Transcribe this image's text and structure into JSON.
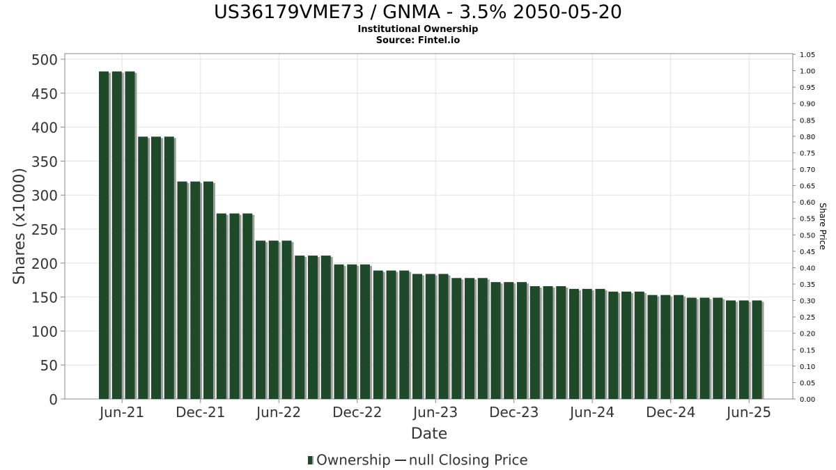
{
  "chart_data": {
    "type": "bar",
    "title": "US36179VME73 / GNMA - 3.5% 2050-05-20",
    "subtitle_lines": [
      "Institutional Ownership",
      "Source: Fintel.io"
    ],
    "xlabel": "Date",
    "ylabel": "Shares (x1000)",
    "y2label": "Share Price",
    "ylim": [
      0,
      510
    ],
    "y2lim": [
      0,
      1.05
    ],
    "yticks": [
      0,
      50,
      100,
      150,
      200,
      250,
      300,
      350,
      400,
      450,
      500
    ],
    "y2ticks": [
      "0.00",
      "0.05",
      "0.10",
      "0.15",
      "0.20",
      "0.25",
      "0.30",
      "0.35",
      "0.40",
      "0.45",
      "0.50",
      "0.55",
      "0.60",
      "0.65",
      "0.70",
      "0.75",
      "0.80",
      "0.85",
      "0.90",
      "0.95",
      "1.00",
      "1.05"
    ],
    "xticks": [
      {
        "label": "Jun-21",
        "index": 1.4
      },
      {
        "label": "Dec-21",
        "index": 7.4
      },
      {
        "label": "Jun-22",
        "index": 13.4
      },
      {
        "label": "Dec-22",
        "index": 19.4
      },
      {
        "label": "Jun-23",
        "index": 25.4
      },
      {
        "label": "Dec-23",
        "index": 31.4
      },
      {
        "label": "Jun-24",
        "index": 37.4
      },
      {
        "label": "Dec-24",
        "index": 43.4
      },
      {
        "label": "Jun-25",
        "index": 49.4
      }
    ],
    "grid": true,
    "legend_position": "bottom",
    "series": [
      {
        "name": "Ownership",
        "color": "#1f4a2a",
        "values": [
          482,
          482,
          482,
          386,
          386,
          386,
          320,
          320,
          320,
          273,
          273,
          273,
          233,
          233,
          233,
          211,
          211,
          211,
          198,
          198,
          198,
          189,
          189,
          189,
          184,
          184,
          184,
          178,
          178,
          178,
          172,
          172,
          172,
          166,
          166,
          166,
          162,
          162,
          162,
          158,
          158,
          158,
          153,
          153,
          153,
          149,
          149,
          149,
          145,
          145,
          145
        ]
      }
    ],
    "legend": {
      "ownership_label": "Ownership",
      "price_label": "null Closing Price"
    }
  }
}
